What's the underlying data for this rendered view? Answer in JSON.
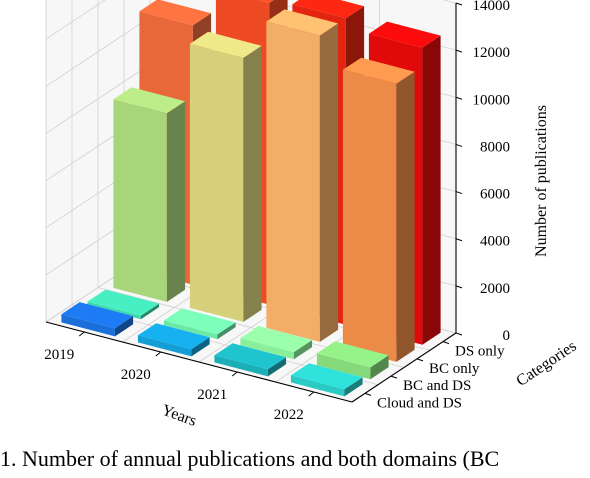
{
  "chart_data": {
    "type": "bar3d",
    "xlabel": "Years",
    "ylabel": "Categories",
    "zlabel": "Number of publications",
    "x_categories": [
      "2019",
      "2020",
      "2021",
      "2022"
    ],
    "y_categories": [
      "Cloud and DS",
      "BC and DS",
      "BC only",
      "DS only"
    ],
    "zlim": [
      0,
      14000
    ],
    "z_ticks": [
      0,
      2000,
      4000,
      6000,
      8000,
      10000,
      12000,
      14000
    ],
    "grid": true,
    "series": [
      {
        "values": [
          350,
          300,
          300,
          300
        ],
        "colors": [
          "#1a6fdb",
          "#149ed6",
          "#1bb0b8",
          "#2bcac4"
        ]
      },
      {
        "values": [
          150,
          200,
          300,
          500
        ],
        "colors": [
          "#3fd6ae",
          "#6ee8a6",
          "#8aef9a",
          "#86d97a"
        ]
      },
      {
        "values": [
          8000,
          11200,
          13000,
          11800
        ],
        "colors": [
          "#a8d47a",
          "#d6d07a",
          "#f3ad66",
          "#ec8a48"
        ]
      },
      {
        "values": [
          11000,
          12800,
          13000,
          12600
        ],
        "colors": [
          "#e9683a",
          "#ee4a24",
          "#e32410",
          "#e00a0a"
        ]
      }
    ]
  },
  "caption": "1. Number of annual publications and both domains (BC"
}
